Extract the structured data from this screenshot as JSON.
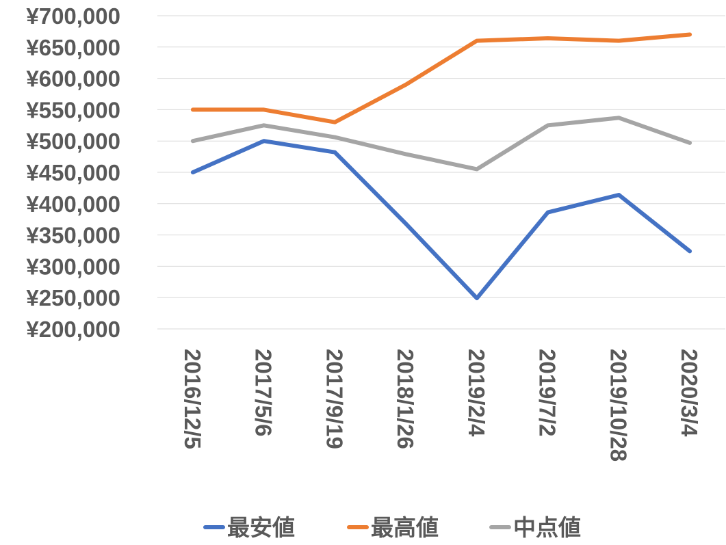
{
  "chart_data": {
    "type": "line",
    "categories": [
      "2016/12/5",
      "2017/5/6",
      "2017/9/19",
      "2018/1/26",
      "2019/2/4",
      "2019/7/2",
      "2019/10/28",
      "2020/3/4"
    ],
    "series": [
      {
        "name": "最安値",
        "color": "#4472c4",
        "values": [
          450000,
          500000,
          482000,
          368000,
          249000,
          386000,
          414000,
          324000
        ]
      },
      {
        "name": "最高値",
        "color": "#ed7d31",
        "values": [
          550000,
          550000,
          530000,
          590000,
          660000,
          664000,
          660000,
          670000
        ]
      },
      {
        "name": "中点値",
        "color": "#a5a5a5",
        "values": [
          500000,
          525000,
          506000,
          479000,
          455000,
          525000,
          537000,
          497000
        ]
      }
    ],
    "yticks": [
      "¥700,000",
      "¥650,000",
      "¥600,000",
      "¥550,000",
      "¥500,000",
      "¥450,000",
      "¥400,000",
      "¥350,000",
      "¥300,000",
      "¥250,000",
      "¥200,000"
    ],
    "ylim": [
      200000,
      700000
    ],
    "grid": true,
    "legend_position": "bottom"
  }
}
